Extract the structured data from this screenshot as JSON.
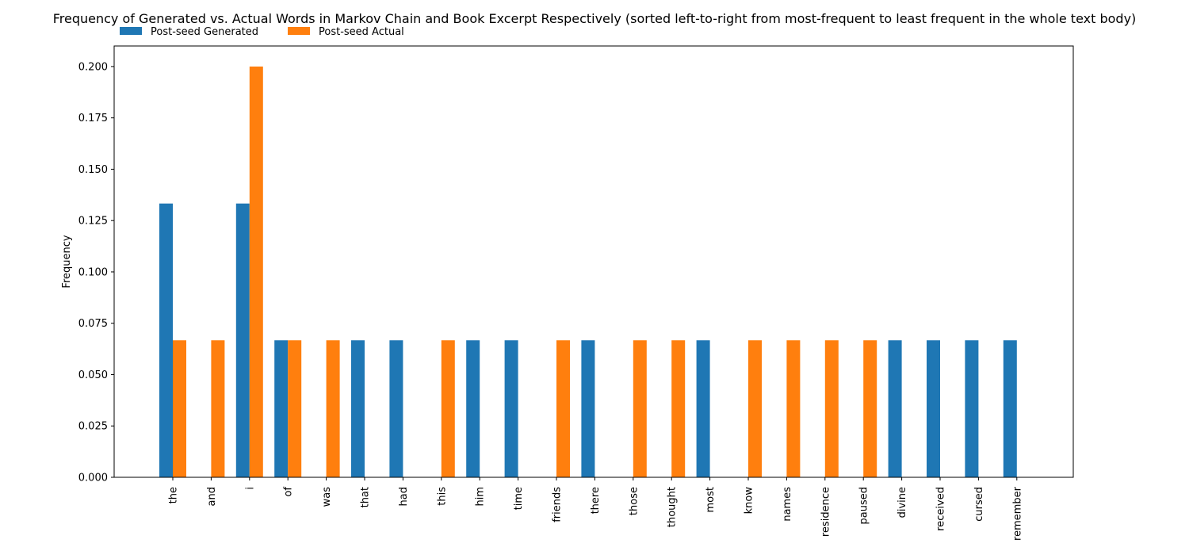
{
  "chart_data": {
    "type": "bar",
    "title": "Frequency of Generated vs. Actual Words in Markov Chain and Book Excerpt Respectively (sorted left-to-right from most-frequent to least frequent in the whole text body)",
    "xlabel": "",
    "ylabel": "Frequency",
    "ylim": [
      0,
      0.21
    ],
    "yticks": [
      0.0,
      0.025,
      0.05,
      0.075,
      0.1,
      0.125,
      0.15,
      0.175,
      0.2
    ],
    "ytick_labels": [
      "0.000",
      "0.025",
      "0.050",
      "0.075",
      "0.100",
      "0.125",
      "0.150",
      "0.175",
      "0.200"
    ],
    "grid": false,
    "legend_position": "top-left",
    "categories": [
      "the",
      "and",
      "i",
      "of",
      "was",
      "that",
      "had",
      "this",
      "him",
      "time",
      "friends",
      "there",
      "those",
      "thought",
      "most",
      "know",
      "names",
      "residence",
      "paused",
      "divine",
      "received",
      "cursed",
      "remember"
    ],
    "series": [
      {
        "name": "Post-seed Generated",
        "color": "#1f77b4",
        "values": [
          0.1333,
          0,
          0.1333,
          0.0667,
          0,
          0.0667,
          0.0667,
          0,
          0.0667,
          0.0667,
          0,
          0.0667,
          0,
          0,
          0.0667,
          0,
          0,
          0,
          0,
          0.0667,
          0.0667,
          0.0667,
          0.0667
        ]
      },
      {
        "name": "Post-seed Actual",
        "color": "#ff7f0e",
        "values": [
          0.0667,
          0.0667,
          0.2,
          0.0667,
          0.0667,
          0,
          0,
          0.0667,
          0,
          0,
          0.0667,
          0,
          0.0667,
          0.0667,
          0,
          0.0667,
          0.0667,
          0.0667,
          0.0667,
          0,
          0,
          0,
          0
        ]
      }
    ]
  }
}
